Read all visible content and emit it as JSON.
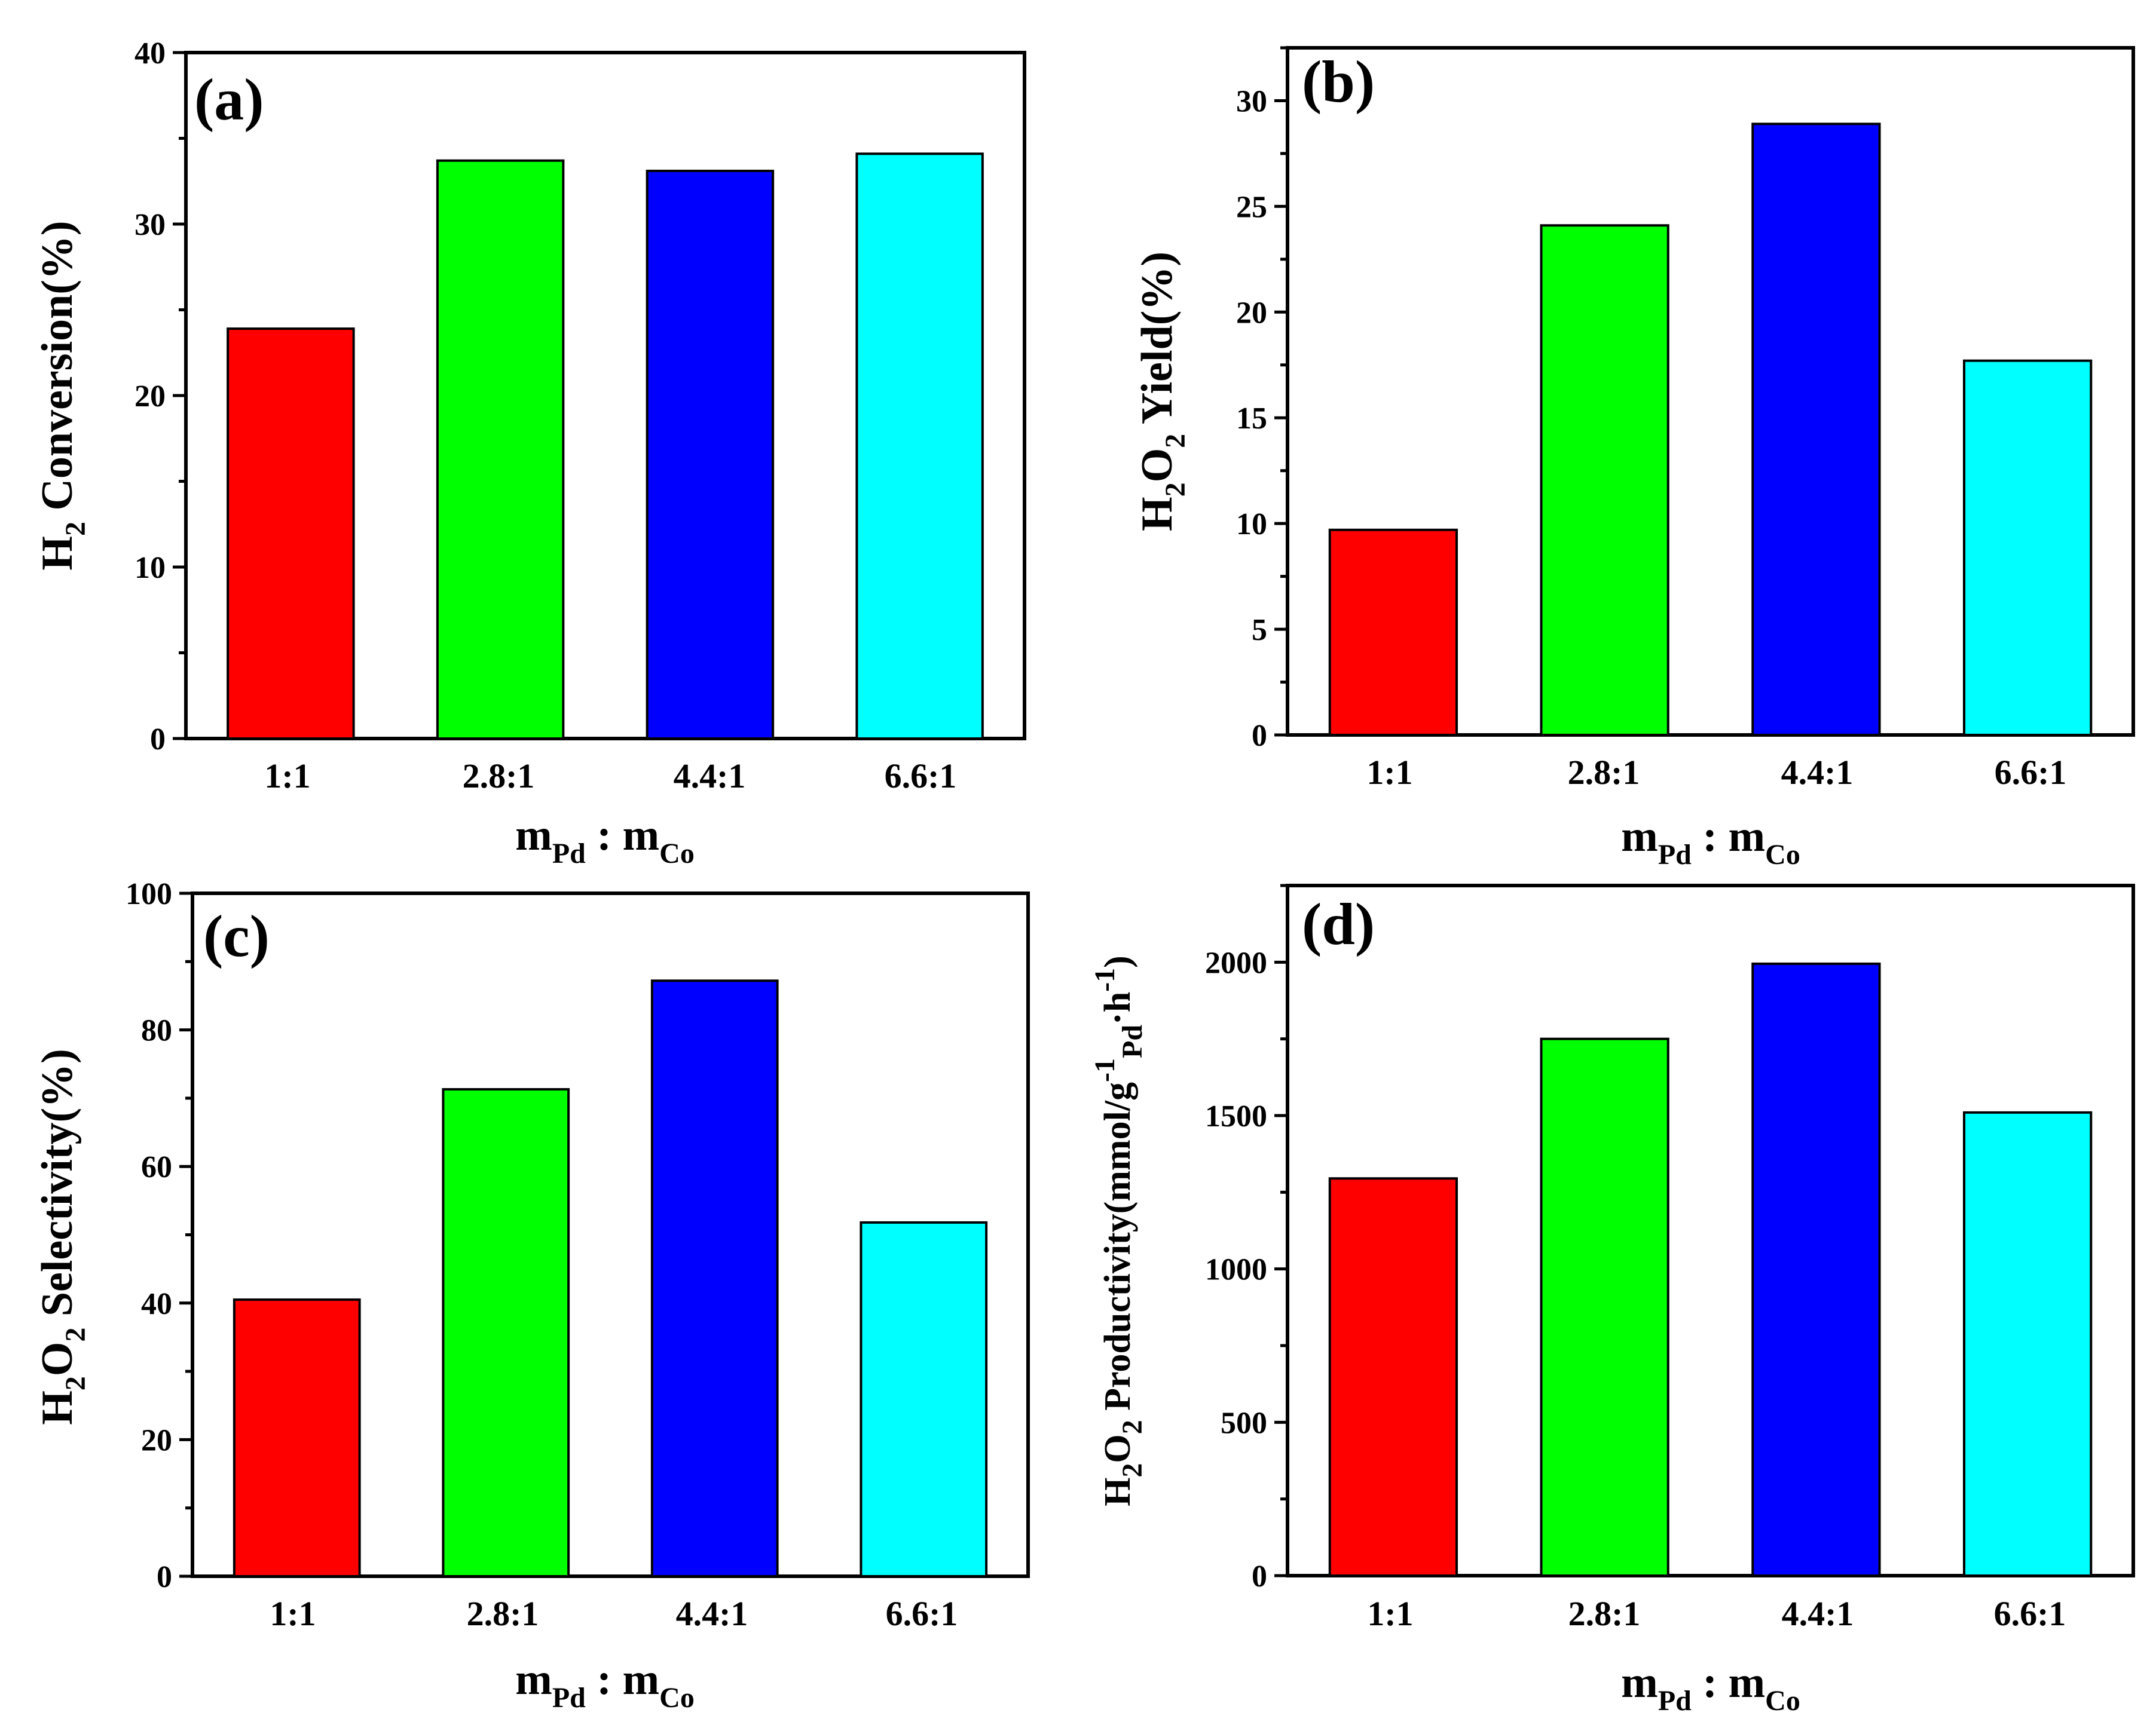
{
  "chart_data": [
    {
      "type": "bar",
      "panel_label": "(a)",
      "categories": [
        "1:1",
        "2.8:1",
        "4.4:1",
        "6.6:1"
      ],
      "values": [
        23.9,
        33.7,
        33.1,
        34.1
      ],
      "colors": [
        "#ff0000",
        "#00ff00",
        "#0000ff",
        "#00ffff"
      ],
      "ylim": [
        0,
        40
      ],
      "yticks": [
        0,
        10,
        20,
        30,
        40
      ],
      "ylabel": {
        "main": "H",
        "sub": "2",
        "rest": " Conversion(%)"
      },
      "xlabel": {
        "m1": "m",
        "s1": "Pd",
        "sep": " : ",
        "m2": "m",
        "s2": "Co"
      }
    },
    {
      "type": "bar",
      "panel_label": "(b)",
      "categories": [
        "1:1",
        "2.8:1",
        "4.4:1",
        "6.6:1"
      ],
      "values": [
        9.7,
        24.1,
        28.9,
        17.7
      ],
      "colors": [
        "#ff0000",
        "#00ff00",
        "#0000ff",
        "#00ffff"
      ],
      "ylim": [
        0,
        32.5
      ],
      "yticks": [
        0,
        5,
        10,
        15,
        20,
        25,
        30
      ],
      "ylabel": {
        "a": "H",
        "as": "2",
        "b": "O",
        "bs": "2",
        "rest": " Yield(%)"
      },
      "xlabel": {
        "m1": "m",
        "s1": "Pd",
        "sep": " : ",
        "m2": "m",
        "s2": "Co"
      }
    },
    {
      "type": "bar",
      "panel_label": "(c)",
      "categories": [
        "1:1",
        "2.8:1",
        "4.4:1",
        "6.6:1"
      ],
      "values": [
        40.5,
        71.3,
        87.2,
        51.8
      ],
      "colors": [
        "#ff0000",
        "#00ff00",
        "#0000ff",
        "#00ffff"
      ],
      "ylim": [
        0,
        100
      ],
      "yticks": [
        0,
        20,
        40,
        60,
        80,
        100
      ],
      "ylabel": {
        "a": "H",
        "as": "2",
        "b": "O",
        "bs": "2",
        "rest": " Selectivity(%)"
      },
      "xlabel": {
        "m1": "m",
        "s1": "Pd",
        "sep": " : ",
        "m2": "m",
        "s2": "Co"
      }
    },
    {
      "type": "bar",
      "panel_label": "(d)",
      "categories": [
        "1:1",
        "2.8:1",
        "4.4:1",
        "6.6:1"
      ],
      "values": [
        1295,
        1750,
        1995,
        1510
      ],
      "colors": [
        "#ff0000",
        "#00ff00",
        "#0000ff",
        "#00ffff"
      ],
      "ylim": [
        0,
        2250
      ],
      "yticks": [
        0,
        500,
        1000,
        1500,
        2000
      ],
      "ylabel": {
        "a": "H",
        "as": "2",
        "b": "O",
        "bs": "2",
        "rest": " Productivity(mmol/g",
        "sup1": "-1",
        "sub3": "Pd",
        "rest2": "·h",
        "sup2": "-1",
        "rest3": ")"
      },
      "xlabel": {
        "m1": "m",
        "s1": "Pd",
        "sep": " : ",
        "m2": "m",
        "s2": "Co"
      }
    }
  ]
}
